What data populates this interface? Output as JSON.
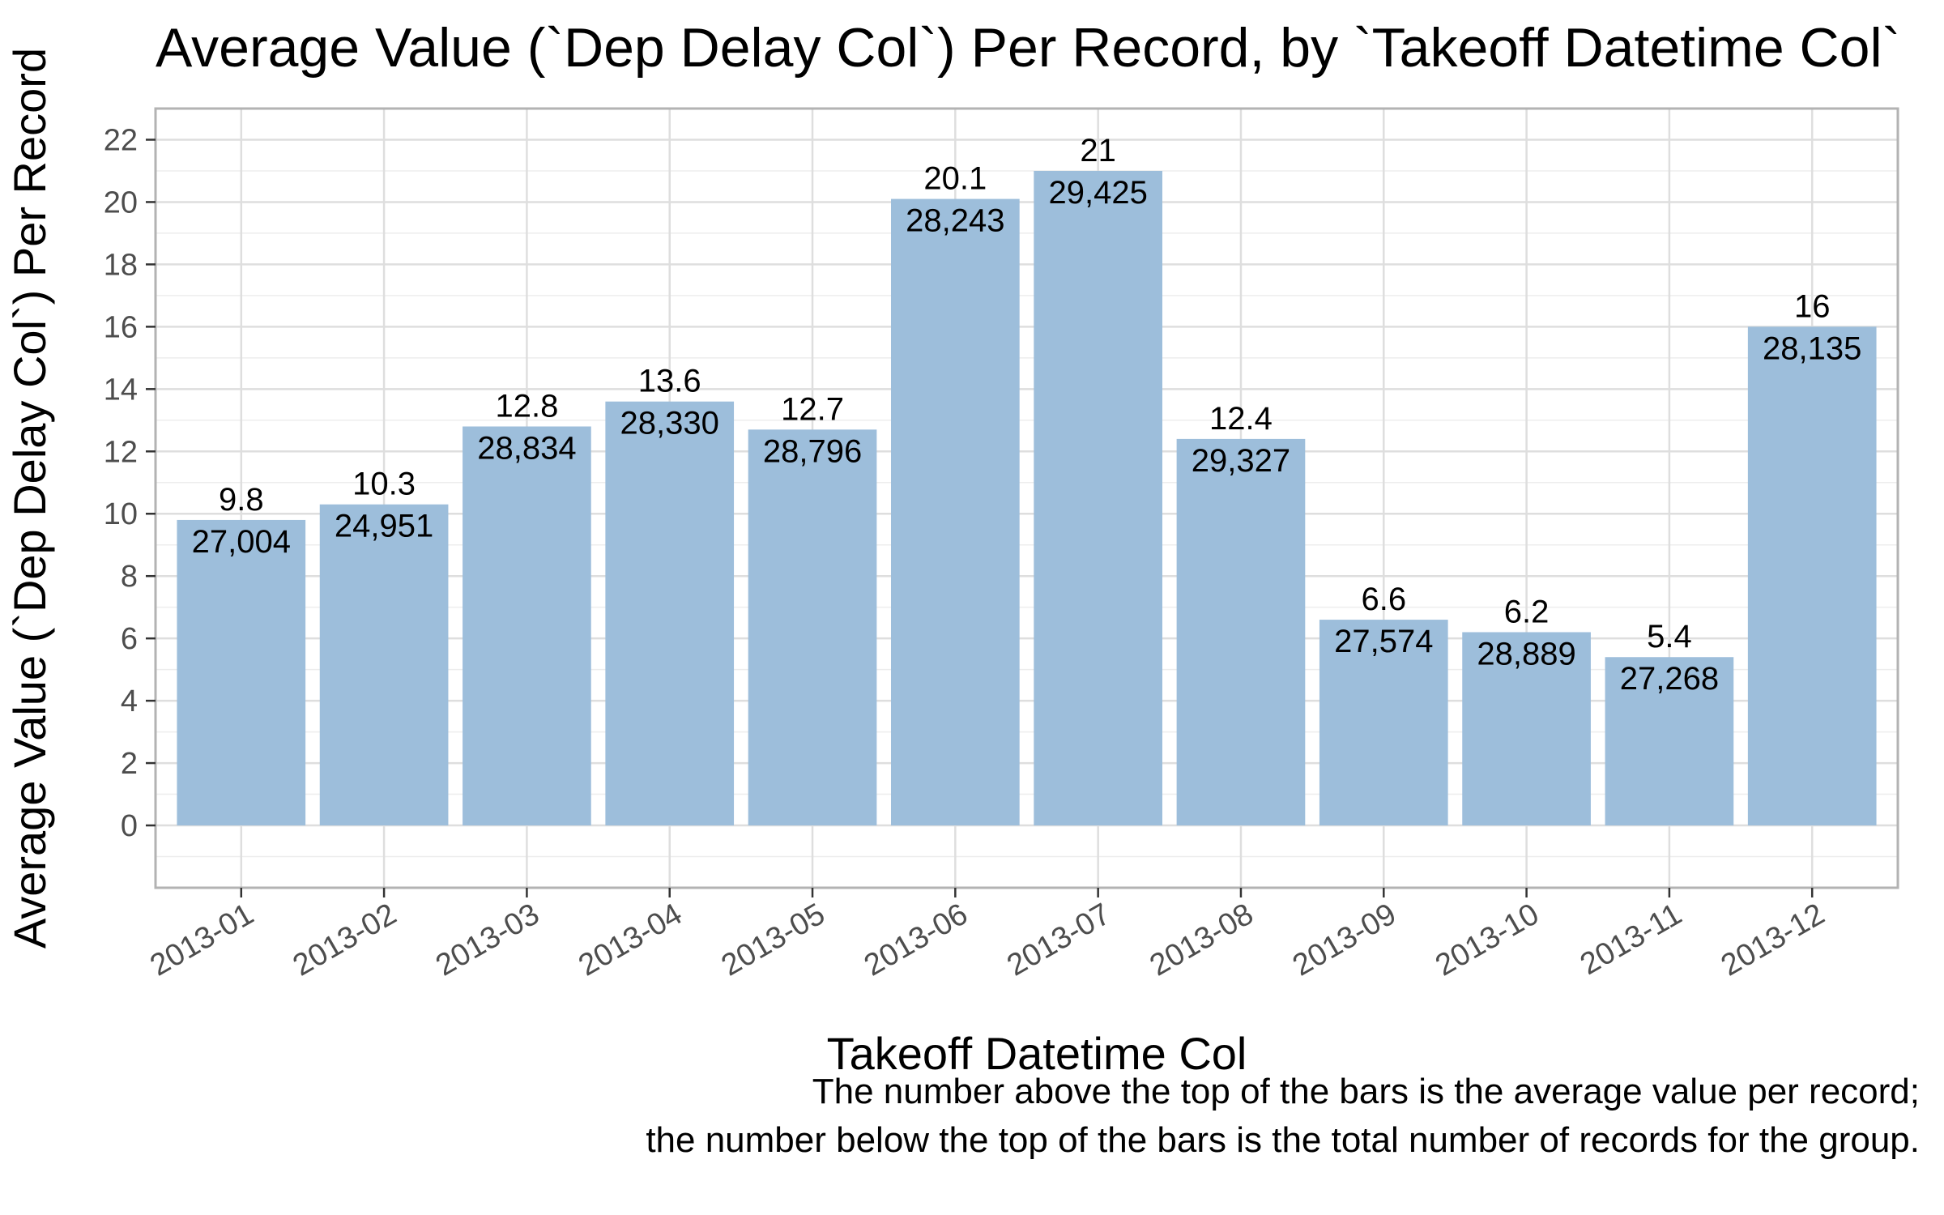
{
  "chart_data": {
    "type": "bar",
    "title": "Average Value (`Dep Delay Col`) Per Record, by `Takeoff Datetime Col`",
    "xlabel": "Takeoff Datetime Col",
    "ylabel": "Average Value (`Dep Delay Col`) Per Record",
    "categories": [
      "2013-01",
      "2013-02",
      "2013-03",
      "2013-04",
      "2013-05",
      "2013-06",
      "2013-07",
      "2013-08",
      "2013-09",
      "2013-10",
      "2013-11",
      "2013-12"
    ],
    "values": [
      9.8,
      10.3,
      12.8,
      13.6,
      12.7,
      20.1,
      21,
      12.4,
      6.6,
      6.2,
      5.4,
      16
    ],
    "value_labels": [
      "9.8",
      "10.3",
      "12.8",
      "13.6",
      "12.7",
      "20.1",
      "21",
      "12.4",
      "6.6",
      "6.2",
      "5.4",
      "16"
    ],
    "counts": [
      "27,004",
      "24,951",
      "28,834",
      "28,330",
      "28,796",
      "28,243",
      "29,425",
      "29,327",
      "27,574",
      "28,889",
      "27,268",
      "28,135"
    ],
    "ylim": [
      -2,
      23
    ],
    "yticks": [
      0,
      2,
      4,
      6,
      8,
      10,
      12,
      14,
      16,
      18,
      20,
      22
    ],
    "grid": true,
    "bar_color": "#9dbedb",
    "caption": [
      "The number above the top of the bars is the average value per record;",
      "the number below the top of the bars is the total number of records for the group."
    ]
  }
}
